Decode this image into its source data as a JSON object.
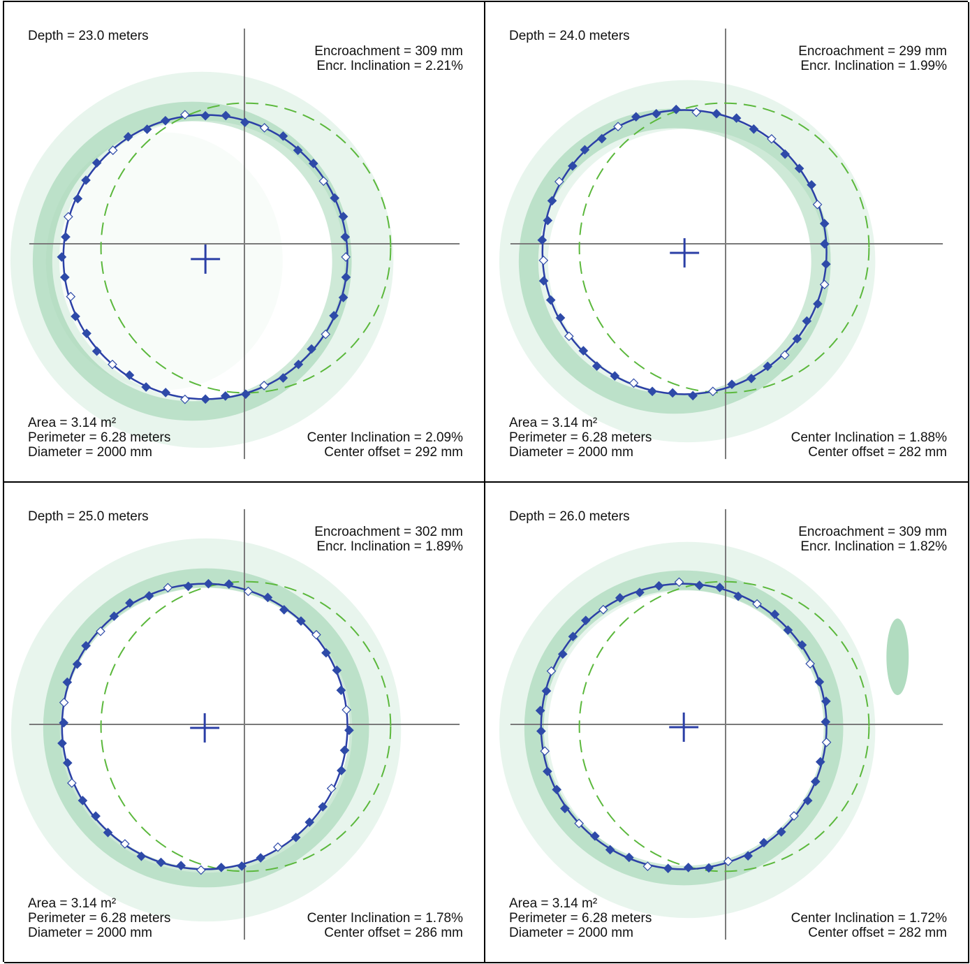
{
  "colors": {
    "fit_circle": "#2b3fa6",
    "marker": "#2e4aa8",
    "reference_circle": "#5bb83c",
    "axes": "#7a7a7a",
    "scan_intensity": "#1f9a4a"
  },
  "panels": [
    {
      "depth": "Depth = 23.0 meters",
      "encroachment": "Encroachment = 309 mm",
      "encr_inclination": "Encr. Inclination = 2.21%",
      "area": "Area = 3.14 m²",
      "perimeter": "Perimeter = 6.28 meters",
      "diameter": "Diameter = 2000 mm",
      "center_inclination": "Center Inclination = 2.09%",
      "center_offset": "Center offset = 292 mm"
    },
    {
      "depth": "Depth = 24.0 meters",
      "encroachment": "Encroachment = 299 mm",
      "encr_inclination": "Encr. Inclination = 1.99%",
      "area": "Area = 3.14 m²",
      "perimeter": "Perimeter = 6.28 meters",
      "diameter": "Diameter = 2000 mm",
      "center_inclination": "Center Inclination = 1.88%",
      "center_offset": "Center offset = 282 mm"
    },
    {
      "depth": "Depth = 25.0 meters",
      "encroachment": "Encroachment = 302 mm",
      "encr_inclination": "Encr. Inclination = 1.89%",
      "area": "Area = 3.14 m²",
      "perimeter": "Perimeter = 6.28 meters",
      "diameter": "Diameter = 2000 mm",
      "center_inclination": "Center Inclination = 1.78%",
      "center_offset": "Center offset = 286 mm"
    },
    {
      "depth": "Depth = 26.0 meters",
      "encroachment": "Encroachment = 309 mm",
      "encr_inclination": "Encr. Inclination = 1.82%",
      "area": "Area = 3.14 m²",
      "perimeter": "Perimeter = 6.28 meters",
      "diameter": "Diameter = 2000 mm",
      "center_inclination": "Center Inclination = 1.72%",
      "center_offset": "Center offset = 282 mm"
    }
  ]
}
